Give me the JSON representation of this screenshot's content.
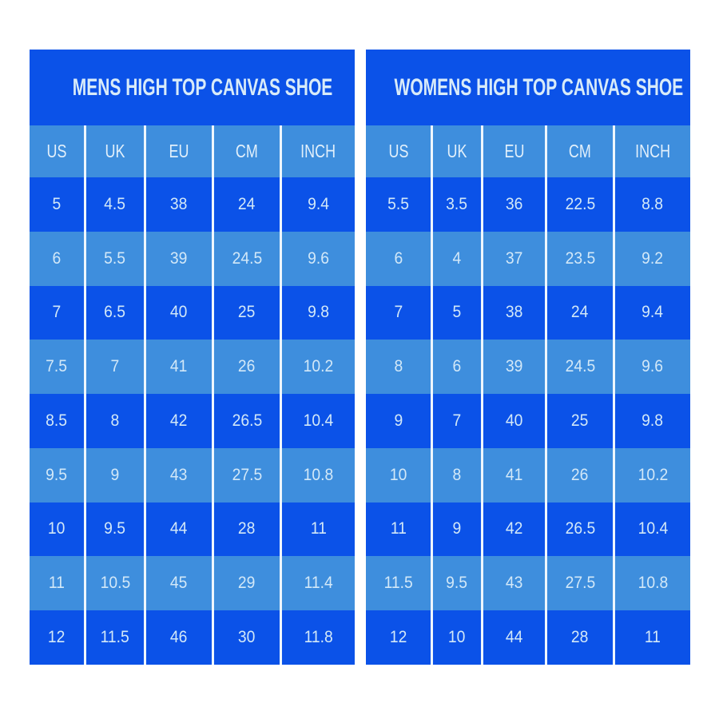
{
  "colors": {
    "dark_blue": "#0b52e8",
    "light_blue": "#3e8edd",
    "separator_line": "#eef6fd",
    "title_text": "#d8ebf9",
    "cell_text": "#d2e8f8",
    "page_background": "#ffffff"
  },
  "chart_data": [
    {
      "type": "table",
      "title": "MENS HIGH TOP CANVAS SHOE",
      "columns": [
        "US",
        "UK",
        "EU",
        "CM",
        "INCH"
      ],
      "rows": [
        [
          "5",
          "4.5",
          "38",
          "24",
          "9.4"
        ],
        [
          "6",
          "5.5",
          "39",
          "24.5",
          "9.6"
        ],
        [
          "7",
          "6.5",
          "40",
          "25",
          "9.8"
        ],
        [
          "7.5",
          "7",
          "41",
          "26",
          "10.2"
        ],
        [
          "8.5",
          "8",
          "42",
          "26.5",
          "10.4"
        ],
        [
          "9.5",
          "9",
          "43",
          "27.5",
          "10.8"
        ],
        [
          "10",
          "9.5",
          "44",
          "28",
          "11"
        ],
        [
          "11",
          "10.5",
          "45",
          "29",
          "11.4"
        ],
        [
          "12",
          "11.5",
          "46",
          "30",
          "11.8"
        ]
      ]
    },
    {
      "type": "table",
      "title": "WOMENS HIGH TOP CANVAS SHOE",
      "columns": [
        "US",
        "UK",
        "EU",
        "CM",
        "INCH"
      ],
      "rows": [
        [
          "5.5",
          "3.5",
          "36",
          "22.5",
          "8.8"
        ],
        [
          "6",
          "4",
          "37",
          "23.5",
          "9.2"
        ],
        [
          "7",
          "5",
          "38",
          "24",
          "9.4"
        ],
        [
          "8",
          "6",
          "39",
          "24.5",
          "9.6"
        ],
        [
          "9",
          "7",
          "40",
          "25",
          "9.8"
        ],
        [
          "10",
          "8",
          "41",
          "26",
          "10.2"
        ],
        [
          "11",
          "9",
          "42",
          "26.5",
          "10.4"
        ],
        [
          "11.5",
          "9.5",
          "43",
          "27.5",
          "10.8"
        ],
        [
          "12",
          "10",
          "44",
          "28",
          "11"
        ]
      ]
    }
  ]
}
